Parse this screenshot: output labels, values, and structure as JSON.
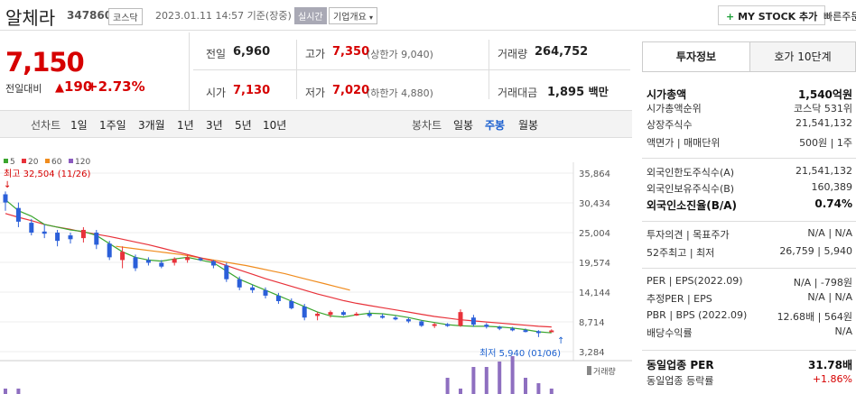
{
  "stock": {
    "name": "알체라",
    "code": "347860",
    "market": "코스닥",
    "datetime": "2023.01.11 14:57 기준(장중)",
    "realtime_badge": "실시간",
    "company_info": "기업개요",
    "company_info_icon": "chevron-down-icon",
    "my_stock_btn": "MY STOCK 추가",
    "quick_btn": "빠른주문"
  },
  "price": {
    "current": "7,150",
    "vs_label": "전일대비",
    "change": "190",
    "change_icon": "up-triangle-icon",
    "percent": "+2.73%"
  },
  "quote": {
    "prev_label": "전일",
    "prev": "6,960",
    "high_label": "고가",
    "high": "7,350",
    "upper_label": "(상한가",
    "upper": "9,040)",
    "volume_label": "거래량",
    "volume": "264,752",
    "open_label": "시가",
    "open": "7,130",
    "low_label": "저가",
    "low": "7,020",
    "lower_label": "(하한가",
    "lower": "4,880)",
    "amount_label": "거래대금",
    "amount": "1,895",
    "amount_unit": "백만"
  },
  "chart_tabs": {
    "line_label": "선차트",
    "line": [
      "1일",
      "1주일",
      "3개월",
      "1년",
      "3년",
      "5년",
      "10년"
    ],
    "candle_label": "봉차트",
    "candle": [
      "일봉",
      "주봉",
      "월봉"
    ],
    "active": "주봉"
  },
  "right_panel": {
    "tabs": [
      "투자정보",
      "호가 10단계"
    ],
    "rows": [
      {
        "label": "시가총액",
        "value": "1,540억원",
        "bold": true
      },
      {
        "label": "시가총액순위",
        "value": "코스닥 531위"
      },
      {
        "label": "상장주식수",
        "value": "21,541,132"
      },
      {
        "label": "액면가 | 매매단위",
        "value": "500원 | 1주"
      },
      {
        "label": "외국인한도주식수(A)",
        "value": "21,541,132"
      },
      {
        "label": "외국인보유주식수(B)",
        "value": "160,389"
      },
      {
        "label": "외국인소진율(B/A)",
        "value": "0.74%",
        "bold": true
      },
      {
        "label": "투자의견 | 목표주가",
        "value": "N/A | N/A"
      },
      {
        "label": "52주최고 | 최저",
        "value": "26,759 | 5,940"
      },
      {
        "label": "PER | EPS(2022.09)",
        "value": "N/A | -798원"
      },
      {
        "label": "추정PER | EPS",
        "value": "N/A | N/A"
      },
      {
        "label": "PBR | BPS (2022.09)",
        "value": "12.68배 | 564원"
      },
      {
        "label": "배당수익률",
        "value": "N/A"
      },
      {
        "label": "동일업종 PER",
        "value": "31.78배",
        "bold": true
      },
      {
        "label": "동일업종 등락률",
        "value": "+1.86%",
        "red": true
      }
    ]
  },
  "chart_data": {
    "type": "line",
    "legend": [
      "5",
      "20",
      "60",
      "120"
    ],
    "colors": {
      "ma5": "#3aa52e",
      "ma20": "#e8323a",
      "ma60": "#f08c1e",
      "ma120": "#8b5bbf",
      "up": "#e8323a",
      "down": "#2b5fd9",
      "volume": "#8e6fc0"
    },
    "yticks": [
      "35,864",
      "30,434",
      "25,004",
      "19,574",
      "14,144",
      "8,714",
      "3,284"
    ],
    "ylim": [
      3284,
      35864
    ],
    "high_label": "최고 32,504 (11/26)",
    "low_label": "최저 5,940 (01/06)",
    "volume_label": "거래량",
    "ma5": [
      31000,
      29000,
      28000,
      26500,
      26000,
      25500,
      25200,
      24500,
      23000,
      21500,
      20500,
      20000,
      19800,
      20200,
      20500,
      20000,
      19500,
      18000,
      16500,
      15500,
      14500,
      13500,
      12500,
      11500,
      10500,
      9800,
      9600,
      10000,
      10300,
      10200,
      9900,
      9500,
      9000,
      8600,
      8200,
      8000,
      7900,
      7900,
      7800,
      7600,
      7300,
      6900,
      6700
    ],
    "ma20": [
      28500,
      27800,
      27200,
      26500,
      26000,
      25600,
      25100,
      24700,
      24300,
      23800,
      23300,
      22800,
      22200,
      21600,
      21000,
      20400,
      19800,
      19000,
      18200,
      17400,
      16600,
      15900,
      15200,
      14500,
      13800,
      13200,
      12600,
      12100,
      11700,
      11300,
      10900,
      10500,
      10100,
      9700,
      9400,
      9100,
      8900,
      8700,
      8500,
      8300,
      8100,
      7900,
      7800
    ],
    "ma60": [
      22500,
      22200,
      21900,
      21600,
      21300,
      21000,
      20600,
      20200,
      19800,
      19400,
      19000,
      18500,
      18000,
      17500,
      16900,
      16300,
      15700,
      15100,
      14500
    ],
    "candles": [
      [
        32504,
        29000,
        32000,
        30500
      ],
      [
        30500,
        26000,
        29500,
        27000
      ],
      [
        27500,
        24500,
        26800,
        25000
      ],
      [
        26500,
        24000,
        25200,
        24800
      ],
      [
        25500,
        22500,
        25000,
        23500
      ],
      [
        25000,
        23000,
        24500,
        23800
      ],
      [
        26000,
        23200,
        24000,
        25500
      ],
      [
        25500,
        22000,
        25000,
        22800
      ],
      [
        23500,
        20000,
        23000,
        20500
      ],
      [
        22500,
        18500,
        20000,
        21500
      ],
      [
        21000,
        18000,
        20500,
        18500
      ],
      [
        20500,
        19000,
        20000,
        19500
      ],
      [
        20000,
        18500,
        19500,
        18800
      ],
      [
        20500,
        19000,
        19500,
        20200
      ],
      [
        21000,
        19500,
        20000,
        20500
      ],
      [
        20500,
        19800,
        20300,
        20000
      ],
      [
        20000,
        18500,
        19800,
        19000
      ],
      [
        19500,
        16000,
        19000,
        16500
      ],
      [
        17000,
        14500,
        16500,
        15000
      ],
      [
        15500,
        14000,
        15000,
        14500
      ],
      [
        15000,
        13000,
        14500,
        13500
      ],
      [
        14000,
        12000,
        13500,
        12500
      ],
      [
        13000,
        11000,
        12500,
        11200
      ],
      [
        12000,
        9000,
        11500,
        9500
      ],
      [
        10500,
        9000,
        9800,
        10200
      ],
      [
        10800,
        9500,
        10000,
        10500
      ],
      [
        10800,
        9800,
        10500,
        10000
      ],
      [
        10500,
        9800,
        10000,
        10200
      ],
      [
        10800,
        9500,
        10200,
        9800
      ],
      [
        10200,
        9300,
        9800,
        9500
      ],
      [
        9800,
        9000,
        9500,
        9200
      ],
      [
        9500,
        8500,
        9200,
        8800
      ],
      [
        9000,
        7800,
        8800,
        8000
      ],
      [
        8500,
        7600,
        8000,
        8300
      ],
      [
        8500,
        7800,
        8300,
        8000
      ],
      [
        11000,
        7800,
        8000,
        10500
      ],
      [
        10000,
        7800,
        9500,
        8200
      ],
      [
        8500,
        7500,
        8200,
        7800
      ],
      [
        8000,
        7200,
        7800,
        7500
      ],
      [
        7800,
        7000,
        7500,
        7200
      ],
      [
        7500,
        6800,
        7200,
        7000
      ],
      [
        7200,
        5940,
        7000,
        6960
      ],
      [
        7350,
        6900,
        6960,
        7150
      ]
    ],
    "volume": [
      1,
      1,
      0,
      0,
      0,
      0,
      0,
      0,
      0,
      0,
      0,
      0,
      0,
      0,
      0,
      0,
      0,
      0,
      0,
      0,
      0,
      0,
      0,
      0,
      0,
      0,
      0,
      0,
      0,
      0,
      0,
      0,
      0,
      0,
      3,
      1,
      5,
      5,
      6,
      7,
      3,
      2,
      1
    ]
  }
}
